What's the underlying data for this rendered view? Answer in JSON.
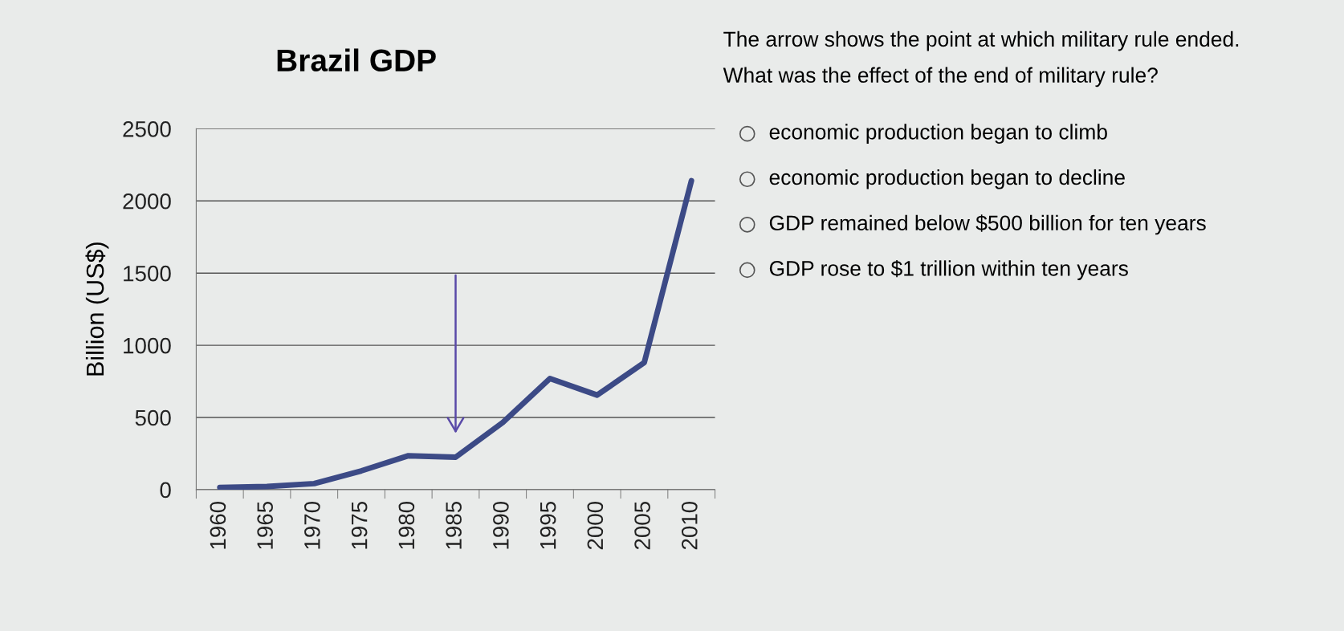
{
  "chart_data": {
    "type": "line",
    "title": "Brazil GDP",
    "ylabel": "Billion (US$)",
    "categories": [
      "1960",
      "1965",
      "1970",
      "1975",
      "1980",
      "1985",
      "1990",
      "1995",
      "2000",
      "2005",
      "2010"
    ],
    "series": [
      {
        "color": "#3c4a86",
        "values": [
          15,
          22,
          42,
          130,
          235,
          225,
          465,
          770,
          655,
          880,
          2140
        ]
      }
    ],
    "ylim": [
      0,
      2500
    ],
    "yticks": [
      0,
      500,
      1000,
      1500,
      2000,
      2500
    ],
    "grid": "y",
    "marker": "none",
    "line_style": "solid",
    "annotations": [
      "The arrow shows the point at which military rule ended.",
      "What was the effect of the end of military rule?",
      "economic production began to climb",
      "economic production began to decline",
      "GDP remained below $500 billion for ten years",
      "GDP rose to $1 trillion within ten years"
    ]
  }
}
